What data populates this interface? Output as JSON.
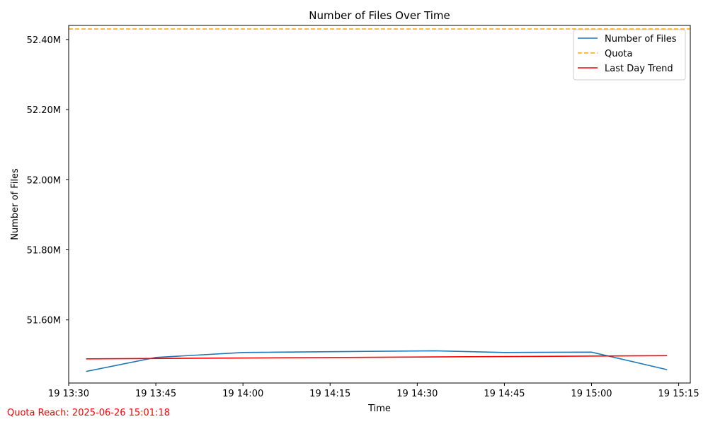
{
  "chart_data": {
    "type": "line",
    "title": "Number of Files Over Time",
    "xlabel": "Time",
    "ylabel": "Number of Files",
    "x_range": [
      "13:30",
      "15:17"
    ],
    "ylim": [
      51.42,
      52.44
    ],
    "y_unit": "M",
    "x_ticks": [
      {
        "time": "13:30",
        "label": "19 13:30"
      },
      {
        "time": "13:45",
        "label": "19 13:45"
      },
      {
        "time": "14:00",
        "label": "19 14:00"
      },
      {
        "time": "14:15",
        "label": "19 14:15"
      },
      {
        "time": "14:30",
        "label": "19 14:30"
      },
      {
        "time": "14:45",
        "label": "19 14:45"
      },
      {
        "time": "15:00",
        "label": "19 15:00"
      },
      {
        "time": "15:15",
        "label": "19 15:15"
      }
    ],
    "y_ticks": [
      {
        "value": 51.6,
        "label": "51.60M"
      },
      {
        "value": 51.8,
        "label": "51.80M"
      },
      {
        "value": 52.0,
        "label": "52.00M"
      },
      {
        "value": 52.2,
        "label": "52.20M"
      },
      {
        "value": 52.4,
        "label": "52.40M"
      }
    ],
    "grid": false,
    "legend_position": "top-right",
    "series": [
      {
        "name": "Number of Files",
        "color": "#1f77b4",
        "style": "solid",
        "points": [
          {
            "time": "13:33",
            "value": 51.453
          },
          {
            "time": "13:45",
            "value": 51.493
          },
          {
            "time": "14:00",
            "value": 51.507
          },
          {
            "time": "14:33",
            "value": 51.512
          },
          {
            "time": "14:45",
            "value": 51.507
          },
          {
            "time": "15:00",
            "value": 51.508
          },
          {
            "time": "15:13",
            "value": 51.458
          }
        ]
      },
      {
        "name": "Quota",
        "color": "#ffa500",
        "style": "dashed",
        "points": [
          {
            "time": "13:30",
            "value": 52.43
          },
          {
            "time": "15:17",
            "value": 52.43
          }
        ]
      },
      {
        "name": "Last Day Trend",
        "color": "#ff0000",
        "style": "solid",
        "points": [
          {
            "time": "13:33",
            "value": 51.489
          },
          {
            "time": "15:13",
            "value": 51.498
          }
        ]
      }
    ]
  },
  "annotation": {
    "quota_reach": "Quota Reach: 2025-06-26 15:01:18",
    "color": "#ff0000"
  }
}
